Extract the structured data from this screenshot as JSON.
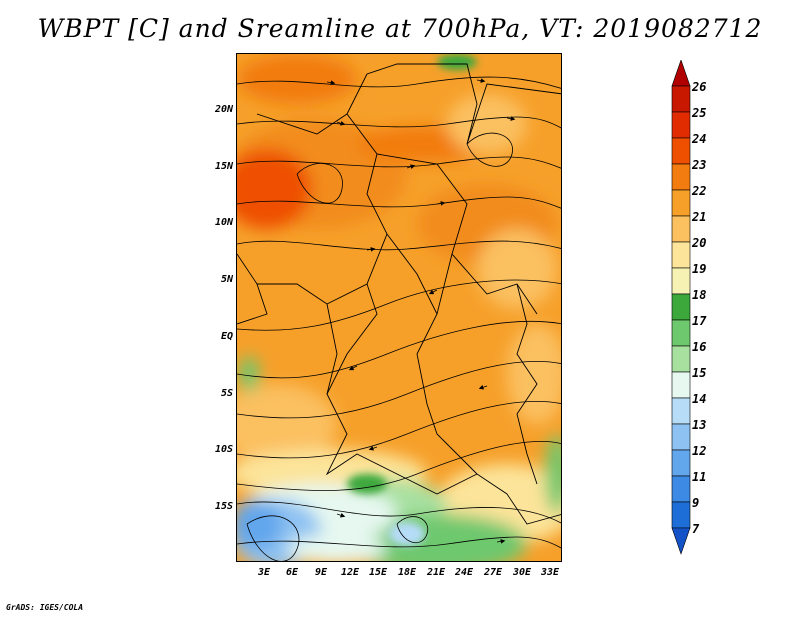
{
  "title": "WBPT [C] and Sreamline at 700hPa, VT: 2019082712",
  "credit": "GrADS: IGES/COLA",
  "map": {
    "lat_labels": [
      "20N",
      "15N",
      "10N",
      "5N",
      "EQ",
      "5S",
      "10S",
      "15S"
    ],
    "lon_labels": [
      "3E",
      "6E",
      "9E",
      "12E",
      "15E",
      "18E",
      "21E",
      "24E",
      "27E",
      "30E",
      "33E"
    ]
  },
  "colorbar": {
    "labels": [
      "26",
      "25",
      "24",
      "23",
      "22",
      "21",
      "20",
      "19",
      "18",
      "17",
      "16",
      "15",
      "14",
      "13",
      "12",
      "11",
      "9",
      "7"
    ],
    "colors": [
      "#b10000",
      "#c81800",
      "#e02c00",
      "#ee5000",
      "#f27c10",
      "#f6a02a",
      "#fbc060",
      "#fce49a",
      "#f6f2b4",
      "#3ca83c",
      "#6ec86e",
      "#a8e0a0",
      "#e6f8f0",
      "#b6dcf8",
      "#8ec2f2",
      "#62a6ec",
      "#3c8ae4",
      "#1e6ed8",
      "#1452c8"
    ]
  }
}
